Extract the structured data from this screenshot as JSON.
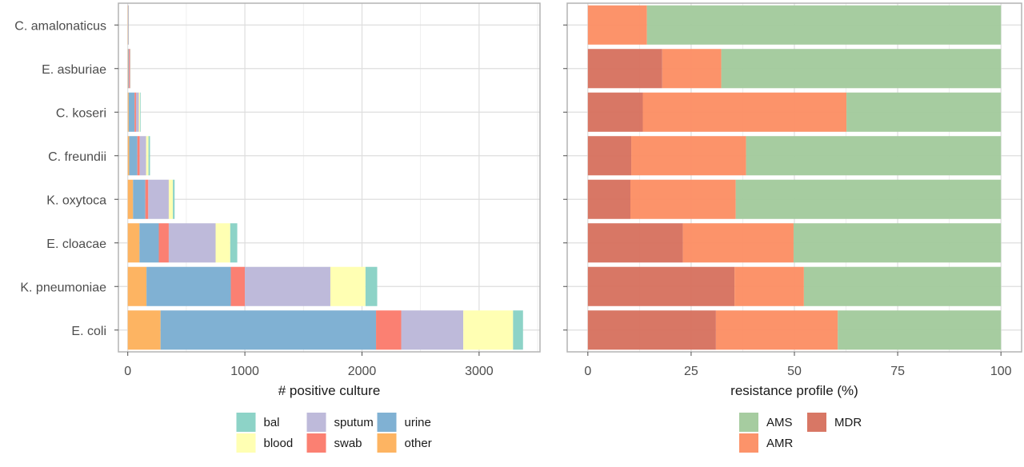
{
  "chart_data": [
    {
      "type": "bar",
      "orientation": "horizontal",
      "stacked": true,
      "categories": [
        "C. amalonaticus",
        "E. asburiae",
        "C. koseri",
        "C. freundii",
        "K. oxytoca",
        "E. cloacae",
        "K. pneumoniae",
        "E. coli"
      ],
      "xlabel": "# positive culture",
      "ylabel": "",
      "xlim": [
        -80,
        3520
      ],
      "xticks": [
        0,
        1000,
        2000,
        3000
      ],
      "grid": true,
      "legend_position": "bottom",
      "legend_order": [
        "bal",
        "blood",
        "sputum",
        "swab",
        "urine",
        "other"
      ],
      "series": [
        {
          "name": "other",
          "color": "#fdb462",
          "values": [
            2,
            4,
            8,
            12,
            45,
            100,
            160,
            280
          ]
        },
        {
          "name": "urine",
          "color": "#80b1d3",
          "values": [
            3,
            6,
            50,
            70,
            105,
            165,
            720,
            1840
          ]
        },
        {
          "name": "swab",
          "color": "#fb8072",
          "values": [
            2,
            8,
            12,
            20,
            25,
            85,
            120,
            215
          ]
        },
        {
          "name": "sputum",
          "color": "#bebada",
          "values": [
            2,
            5,
            25,
            55,
            175,
            400,
            730,
            530
          ]
        },
        {
          "name": "blood",
          "color": "#ffffb3",
          "values": [
            1,
            2,
            10,
            20,
            35,
            125,
            300,
            425
          ]
        },
        {
          "name": "bal",
          "color": "#8dd3c7",
          "values": [
            0,
            0,
            5,
            13,
            15,
            60,
            100,
            85
          ]
        }
      ]
    },
    {
      "type": "bar",
      "orientation": "horizontal",
      "stacked": true,
      "categories": [
        "C. amalonaticus",
        "E. asburiae",
        "C. koseri",
        "C. freundii",
        "K. oxytoca",
        "E. cloacae",
        "K. pneumoniae",
        "E. coli"
      ],
      "xlabel": "resistance profile (%)",
      "ylabel": "",
      "xlim": [
        -5,
        105
      ],
      "xticks": [
        0,
        25,
        50,
        75,
        100
      ],
      "grid": true,
      "legend_position": "bottom",
      "legend_order": [
        "AMS",
        "AMR",
        "MDR"
      ],
      "series": [
        {
          "name": "MDR",
          "color": "#d6705d",
          "values": [
            0,
            18,
            13.3,
            10.5,
            10.3,
            23,
            35.5,
            31
          ]
        },
        {
          "name": "AMR",
          "color": "#fc8d62",
          "values": [
            14.3,
            14.3,
            49.3,
            27.8,
            25.5,
            26.8,
            16.8,
            29.5
          ]
        },
        {
          "name": "AMS",
          "color": "#a1c99b",
          "values": [
            85.7,
            67.7,
            37.4,
            61.7,
            64.2,
            50.2,
            47.7,
            39.5
          ]
        }
      ]
    }
  ]
}
